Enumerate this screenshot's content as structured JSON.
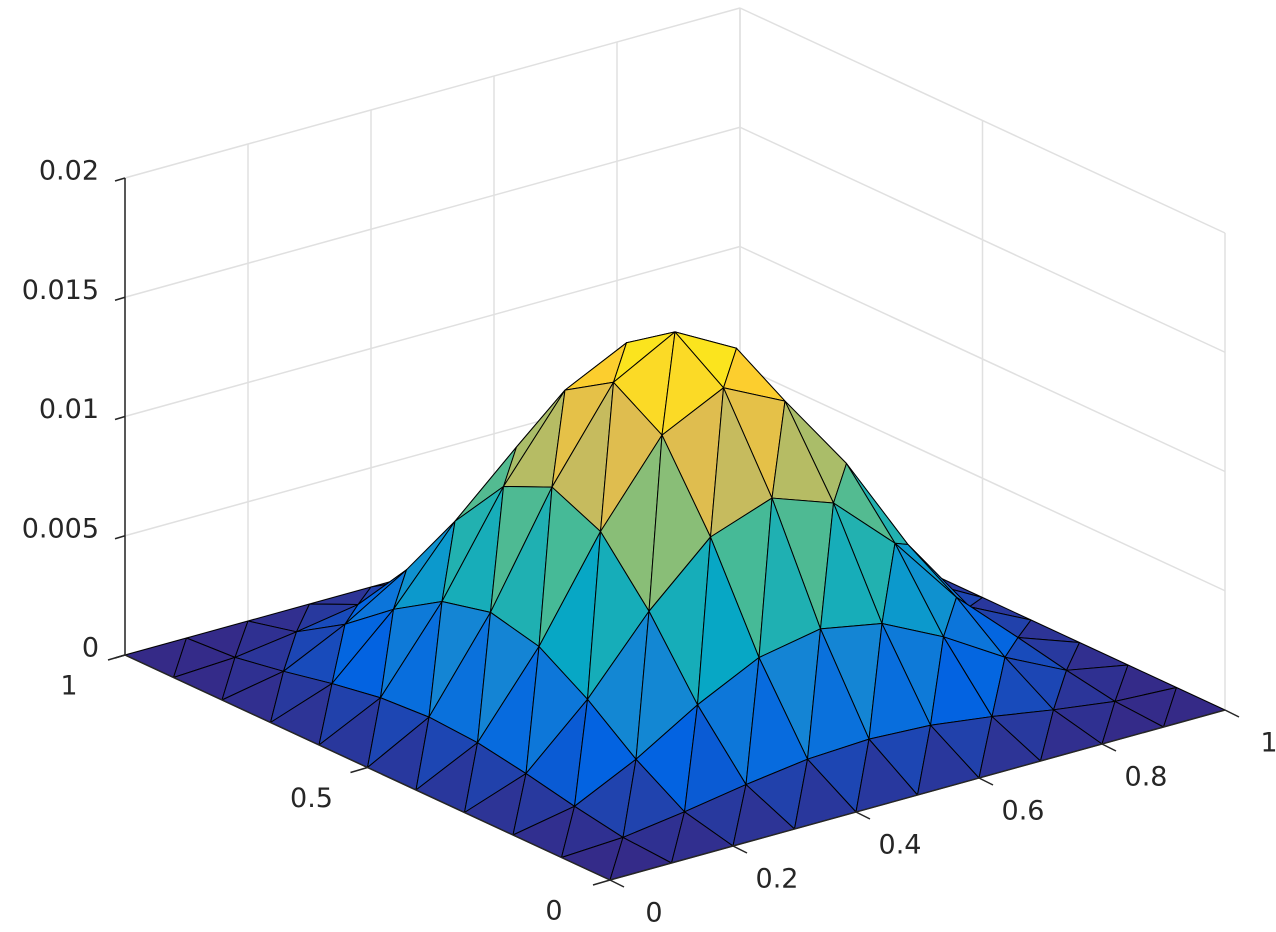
{
  "chart_data": {
    "type": "surface",
    "x": [
      0,
      0.1,
      0.2,
      0.3,
      0.4,
      0.5,
      0.6,
      0.7,
      0.8,
      0.9,
      1
    ],
    "y": [
      0,
      0.1,
      0.2,
      0.3,
      0.4,
      0.5,
      0.6,
      0.7,
      0.8,
      0.9,
      1
    ],
    "z": [
      [
        0,
        0,
        0,
        0,
        0,
        0,
        0,
        0,
        0,
        0,
        0
      ],
      [
        0,
        0.00013,
        0.00049,
        0.00092,
        0.00127,
        0.0014,
        0.00127,
        0.00092,
        0.00049,
        0.00013,
        0
      ],
      [
        0,
        0.00049,
        0.00175,
        0.00332,
        0.00459,
        0.00508,
        0.00459,
        0.00332,
        0.00175,
        0.00049,
        0
      ],
      [
        0,
        0.00092,
        0.00332,
        0.0063,
        0.0087,
        0.00962,
        0.0087,
        0.0063,
        0.00332,
        0.00092,
        0
      ],
      [
        0,
        0.00127,
        0.00459,
        0.0087,
        0.01203,
        0.0133,
        0.01203,
        0.0087,
        0.00459,
        0.00127,
        0
      ],
      [
        0,
        0.0014,
        0.00508,
        0.00962,
        0.0133,
        0.0147,
        0.0133,
        0.00962,
        0.00508,
        0.0014,
        0
      ],
      [
        0,
        0.00127,
        0.00459,
        0.0087,
        0.01203,
        0.0133,
        0.01203,
        0.0087,
        0.00459,
        0.00127,
        0
      ],
      [
        0,
        0.00092,
        0.00332,
        0.0063,
        0.0087,
        0.00962,
        0.0087,
        0.0063,
        0.00332,
        0.00092,
        0
      ],
      [
        0,
        0.00049,
        0.00175,
        0.00332,
        0.00459,
        0.00508,
        0.00459,
        0.00332,
        0.00175,
        0.00049,
        0
      ],
      [
        0,
        0.00013,
        0.00049,
        0.00092,
        0.00127,
        0.0014,
        0.00127,
        0.00092,
        0.00049,
        0.00013,
        0
      ],
      [
        0,
        0,
        0,
        0,
        0,
        0,
        0,
        0,
        0,
        0,
        0
      ]
    ],
    "xlim": [
      0,
      1
    ],
    "xticks": [
      0,
      0.2,
      0.4,
      0.6,
      0.8,
      1
    ],
    "ylim": [
      0,
      1
    ],
    "yticks": [
      0,
      0.5,
      1
    ],
    "zlim": [
      0,
      0.02
    ],
    "zticks": [
      0,
      0.005,
      0.01,
      0.015,
      0.02
    ],
    "grid": true,
    "edge_color": "#000000",
    "colormap": [
      "#352a87",
      "#0363e1",
      "#1485d4",
      "#06a7c6",
      "#38b99e",
      "#92bf73",
      "#d9ba56",
      "#fcce2e",
      "#f9fb0e"
    ]
  }
}
